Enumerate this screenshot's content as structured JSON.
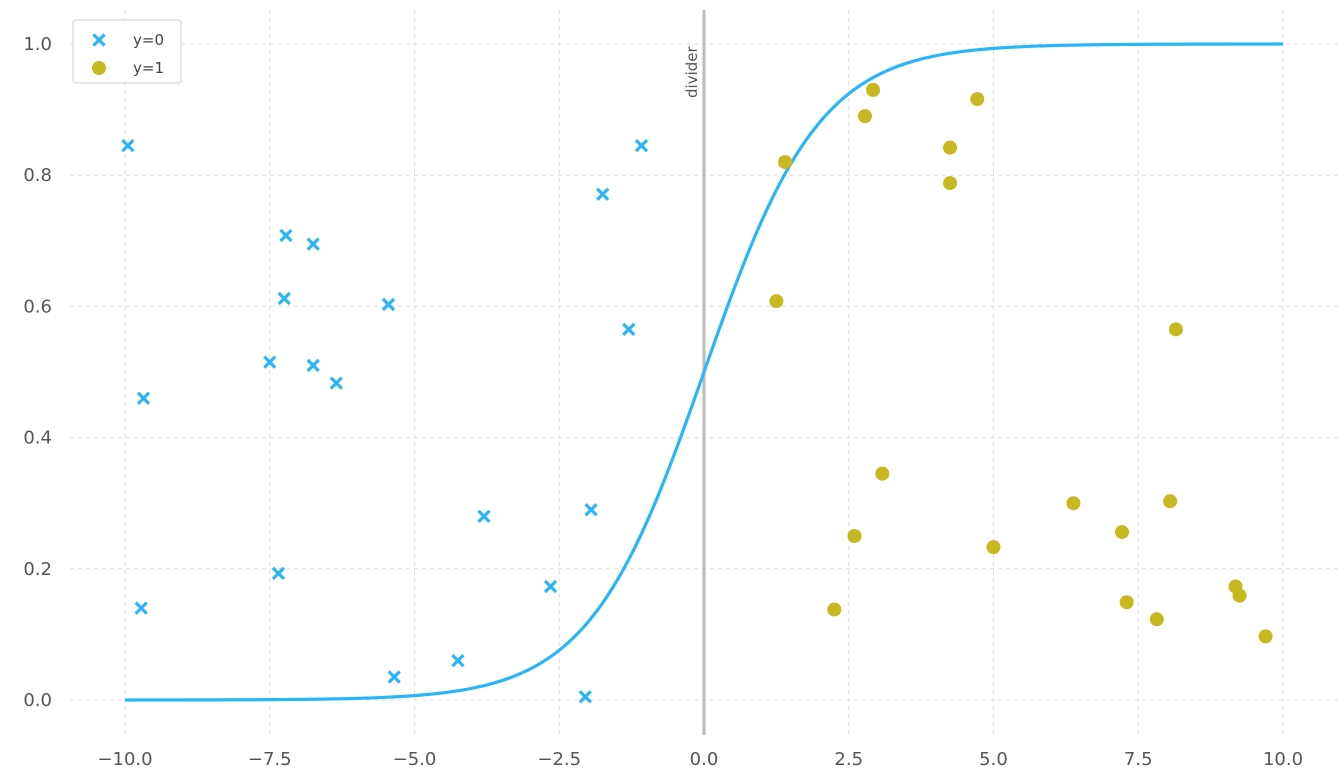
{
  "chart_data": {
    "type": "scatter",
    "title": "",
    "xlabel": "",
    "ylabel": "",
    "xlim": [
      -11.0,
      11.0
    ],
    "ylim": [
      -0.05,
      1.05
    ],
    "x_ticks": [
      -10.0,
      -7.5,
      -5.0,
      -2.5,
      0.0,
      2.5,
      5.0,
      7.5,
      10.0
    ],
    "x_tick_labels": [
      "−10.0",
      "−7.5",
      "−5.0",
      "−2.5",
      "0.0",
      "2.5",
      "5.0",
      "7.5",
      "10.0"
    ],
    "y_ticks": [
      0.0,
      0.2,
      0.4,
      0.6,
      0.8,
      1.0
    ],
    "y_tick_labels": [
      "0.0",
      "0.2",
      "0.4",
      "0.6",
      "0.8",
      "1.0"
    ],
    "grid": true,
    "legend_position": "top-left",
    "colors": {
      "class0": "#29b6f6",
      "class1": "#c8b820",
      "divider": "#bbbbbb",
      "grid": "#dddddd"
    },
    "series": [
      {
        "name": "y=0",
        "marker": "x",
        "color": "#29b6f6",
        "points": [
          [
            -9.95,
            0.845
          ],
          [
            -9.72,
            0.14
          ],
          [
            -9.68,
            0.46
          ],
          [
            -7.5,
            0.515
          ],
          [
            -7.35,
            0.193
          ],
          [
            -7.25,
            0.612
          ],
          [
            -7.22,
            0.708
          ],
          [
            -6.75,
            0.695
          ],
          [
            -6.75,
            0.51
          ],
          [
            -6.35,
            0.483
          ],
          [
            -5.45,
            0.603
          ],
          [
            -5.35,
            0.035
          ],
          [
            -4.25,
            0.06
          ],
          [
            -3.8,
            0.28
          ],
          [
            -2.65,
            0.173
          ],
          [
            -2.05,
            0.005
          ],
          [
            -1.95,
            0.29
          ],
          [
            -1.75,
            0.771
          ],
          [
            -1.3,
            0.565
          ],
          [
            -1.08,
            0.845
          ]
        ]
      },
      {
        "name": "y=1",
        "marker": "o",
        "color": "#c8b820",
        "points": [
          [
            1.25,
            0.608
          ],
          [
            1.4,
            0.82
          ],
          [
            2.25,
            0.138
          ],
          [
            2.6,
            0.25
          ],
          [
            2.78,
            0.89
          ],
          [
            2.92,
            0.93
          ],
          [
            3.08,
            0.345
          ],
          [
            4.25,
            0.842
          ],
          [
            4.25,
            0.788
          ],
          [
            4.72,
            0.916
          ],
          [
            5.0,
            0.233
          ],
          [
            6.38,
            0.3
          ],
          [
            7.22,
            0.256
          ],
          [
            7.3,
            0.149
          ],
          [
            7.82,
            0.123
          ],
          [
            8.05,
            0.303
          ],
          [
            8.15,
            0.565
          ],
          [
            9.18,
            0.173
          ],
          [
            9.25,
            0.159
          ],
          [
            9.7,
            0.097
          ]
        ]
      },
      {
        "name": "",
        "type": "line",
        "function": "sigmoid",
        "color": "#29b6f6",
        "x_range": [
          -10,
          10
        ]
      }
    ],
    "annotations": [
      {
        "type": "vline",
        "x": 0.0,
        "label": "divider",
        "color": "#bbbbbb"
      }
    ]
  }
}
